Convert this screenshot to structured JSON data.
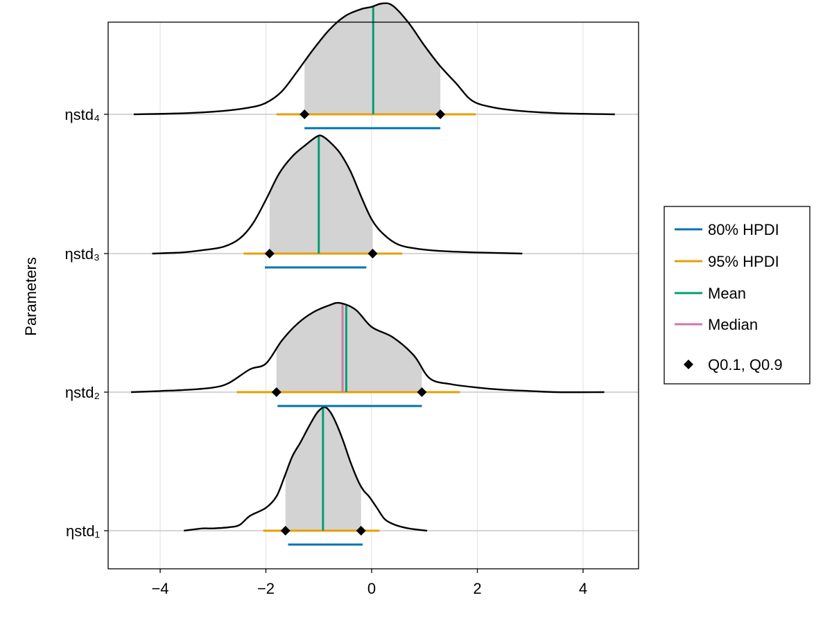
{
  "chart_data": {
    "type": "ridgeline-density",
    "ylabel": "Parameters",
    "xlabel": "",
    "xlim": [
      -5,
      5.1
    ],
    "x_ticks": [
      -4,
      -2,
      0,
      2,
      4
    ],
    "x_tick_labels": [
      "−4",
      "−2",
      "0",
      "2",
      "4"
    ],
    "grid": true,
    "legend_position": "right",
    "legend": [
      {
        "key": "hpdi80",
        "label": "80% HPDI",
        "color": "#0072b2",
        "marker": "line"
      },
      {
        "key": "hpdi95",
        "label": "95% HPDI",
        "color": "#e69f00",
        "marker": "line"
      },
      {
        "key": "mean",
        "label": "Mean",
        "color": "#009e73",
        "marker": "line"
      },
      {
        "key": "median",
        "label": "Median",
        "color": "#cc79a7",
        "marker": "line"
      },
      {
        "key": "quantiles",
        "label": "Q0.1, Q0.9",
        "color": "#000000",
        "marker": "diamond"
      }
    ],
    "colors": {
      "density_fill": "#d3d3d3",
      "density_line": "#000000",
      "grid": "#e6e6e6",
      "baseline": "#cfcfcf"
    },
    "parameters": [
      {
        "name": "ηstd₁",
        "mean": -0.92,
        "median": -0.92,
        "hpdi80": [
          -1.58,
          -0.17
        ],
        "hpdi95": [
          -2.05,
          0.15
        ],
        "q": [
          -1.63,
          -0.2
        ],
        "fill_range": [
          -1.63,
          -0.2
        ],
        "density_x": [
          -3.55,
          -3.2,
          -3.0,
          -2.7,
          -2.5,
          -2.3,
          -2.0,
          -1.8,
          -1.65,
          -1.5,
          -1.35,
          -1.2,
          -1.05,
          -0.95,
          -0.88,
          -0.8,
          -0.7,
          -0.55,
          -0.4,
          -0.25,
          -0.15,
          -0.05,
          0.1,
          0.25,
          0.45,
          0.7,
          1.05
        ],
        "density_y": [
          0.0,
          0.02,
          0.02,
          0.03,
          0.05,
          0.13,
          0.2,
          0.3,
          0.47,
          0.65,
          0.77,
          0.9,
          1.02,
          1.07,
          1.08,
          1.05,
          0.97,
          0.8,
          0.6,
          0.43,
          0.35,
          0.3,
          0.2,
          0.1,
          0.05,
          0.02,
          0.0
        ]
      },
      {
        "name": "ηstd₂",
        "mean": -0.48,
        "median": -0.55,
        "hpdi80": [
          -1.78,
          0.95
        ],
        "hpdi95": [
          -2.55,
          1.67
        ],
        "q": [
          -1.8,
          0.95
        ],
        "fill_range": [
          -1.8,
          0.95
        ],
        "density_x": [
          -4.55,
          -4.0,
          -3.5,
          -3.0,
          -2.7,
          -2.3,
          -2.0,
          -1.7,
          -1.4,
          -1.1,
          -0.8,
          -0.6,
          -0.3,
          0.0,
          0.4,
          0.8,
          1.1,
          1.5,
          2.0,
          2.5,
          3.0,
          3.5,
          4.4
        ],
        "density_y": [
          0.0,
          0.01,
          0.02,
          0.04,
          0.08,
          0.2,
          0.25,
          0.45,
          0.6,
          0.7,
          0.76,
          0.78,
          0.72,
          0.57,
          0.48,
          0.32,
          0.12,
          0.07,
          0.04,
          0.02,
          0.01,
          0.0,
          0.0
        ]
      },
      {
        "name": "ηstd₃",
        "mean": -1.0,
        "median": -1.0,
        "hpdi80": [
          -2.02,
          -0.1
        ],
        "hpdi95": [
          -2.42,
          0.58
        ],
        "q": [
          -1.93,
          0.02
        ],
        "fill_range": [
          -1.93,
          0.02
        ],
        "density_x": [
          -4.15,
          -3.6,
          -3.2,
          -2.8,
          -2.5,
          -2.25,
          -2.0,
          -1.75,
          -1.5,
          -1.25,
          -1.05,
          -0.95,
          -0.8,
          -0.6,
          -0.4,
          -0.2,
          0.0,
          0.2,
          0.5,
          0.9,
          1.4,
          2.0,
          2.85
        ],
        "density_y": [
          0.0,
          0.01,
          0.03,
          0.06,
          0.13,
          0.26,
          0.47,
          0.7,
          0.85,
          0.95,
          1.02,
          1.03,
          0.98,
          0.88,
          0.72,
          0.5,
          0.3,
          0.18,
          0.08,
          0.04,
          0.02,
          0.01,
          0.0
        ]
      },
      {
        "name": "ηstd₄",
        "mean": 0.03,
        "median": 0.03,
        "hpdi80": [
          -1.27,
          1.3
        ],
        "hpdi95": [
          -1.8,
          1.97
        ],
        "q": [
          -1.27,
          1.3
        ],
        "fill_range": [
          -1.27,
          1.3
        ],
        "density_x": [
          -4.5,
          -3.5,
          -2.8,
          -2.3,
          -2.0,
          -1.7,
          -1.4,
          -1.1,
          -0.8,
          -0.5,
          -0.2,
          0.0,
          0.2,
          0.4,
          0.7,
          1.0,
          1.3,
          1.6,
          1.9,
          2.3,
          2.8,
          3.5,
          4.6
        ],
        "density_y": [
          0.0,
          0.01,
          0.03,
          0.06,
          0.1,
          0.2,
          0.38,
          0.57,
          0.74,
          0.86,
          0.92,
          0.94,
          0.97,
          0.95,
          0.8,
          0.6,
          0.42,
          0.27,
          0.12,
          0.06,
          0.03,
          0.01,
          0.0
        ]
      }
    ]
  }
}
